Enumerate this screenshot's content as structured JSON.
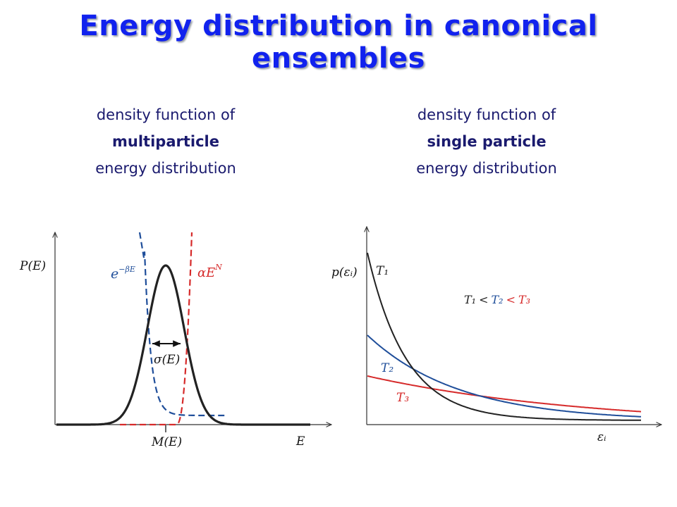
{
  "title": "Energy distribution in canonical ensembles",
  "captions": {
    "left": {
      "line1": "density function of",
      "line2": "multiparticle",
      "line3": "energy distribution"
    },
    "right": {
      "line1": "density function of",
      "line2": "single particle",
      "line3": "energy distribution"
    }
  },
  "left_plot": {
    "y_label": "P(E)",
    "x_label": "E",
    "mean_label": "M(E)",
    "width_label": "σ(E)",
    "exp_label_base": "e",
    "exp_label_sup": "−βE",
    "power_label_base": "αE",
    "power_label_sup": "N",
    "colors": {
      "gaussian": "#222222",
      "exp": "#1f4e9a",
      "power": "#d62a2a"
    }
  },
  "right_plot": {
    "y_label": "p(εᵢ)",
    "x_label": "εᵢ",
    "curve_labels": [
      "T₁",
      "T₂",
      "T₃"
    ],
    "relation": {
      "t1": "T₁",
      "lt1": "<",
      "t2": "T₂",
      "lt2": "<",
      "t3": "T₃"
    },
    "colors": {
      "T1": "#222222",
      "T2": "#1f4e9a",
      "T3": "#d62a2a"
    }
  }
}
